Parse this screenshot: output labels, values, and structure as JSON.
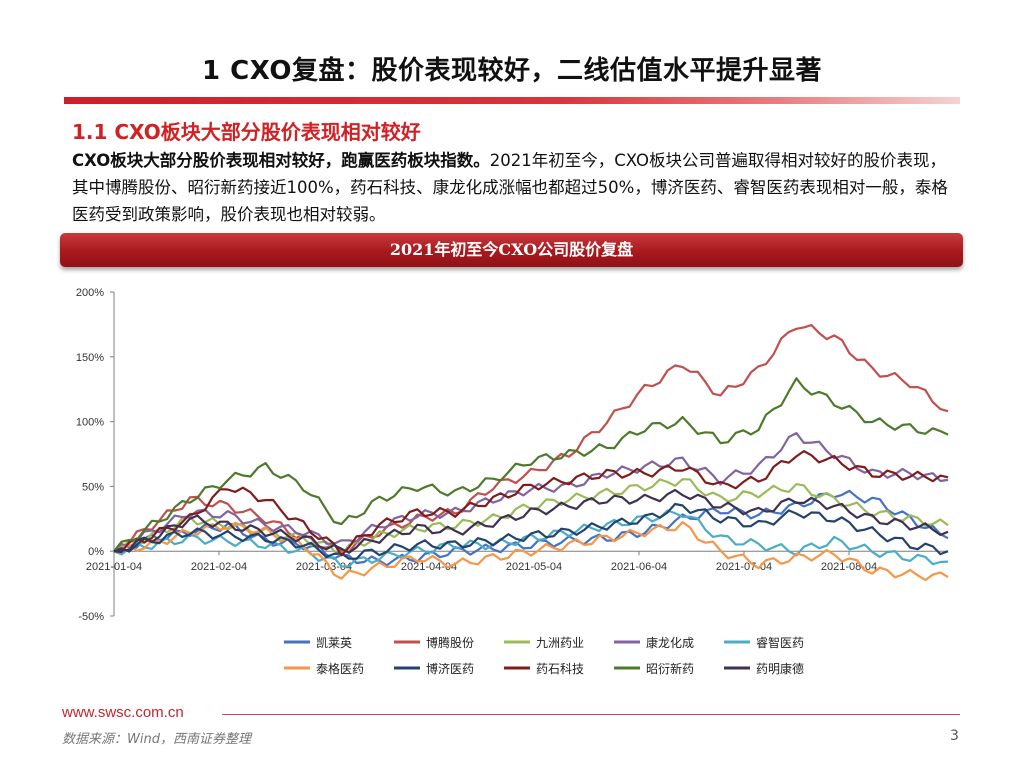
{
  "slide": {
    "title": "1 CXO复盘：股价表现较好，二线估值水平提升显著",
    "subtitle": "1.1 CXO板块大部分股价表现相对较好",
    "body_bold": "CXO板块大部分股价表现相对较好，跑赢医药板块指数。",
    "body_rest": "2021年初至今，CXO板块公司普遍取得相对较好的股价表现，其中博腾股份、昭衍新药接近100%，药石科技、康龙化成涨幅也都超过50%，博济医药、睿智医药表现相对一般，泰格医药受到政策影响，股价表现也相对较弱。",
    "banner": "2021年初至今CXO公司股价复盘",
    "footer_url": "www.swsc.com.cn",
    "footer_source": "数据来源：Wind，西南证券整理",
    "page_number": "3"
  },
  "chart_data": {
    "type": "line",
    "title": "2021年初至今CXO公司股价复盘",
    "xlabel": "",
    "ylabel": "",
    "x_tick_labels": [
      "2021-01-04",
      "2021-02-04",
      "2021-03-04",
      "2021-04-04",
      "2021-05-04",
      "2021-06-04",
      "2021-07-04",
      "2021-08-04"
    ],
    "y_tick_labels": [
      "200%",
      "150%",
      "100%",
      "50%",
      "0%",
      "-50%"
    ],
    "ylim": [
      -50,
      200
    ],
    "n_points": 23,
    "legend_position": "bottom",
    "series": [
      {
        "name": "凯莱英",
        "color": "#4472c4",
        "values": [
          0,
          10,
          15,
          20,
          8,
          5,
          -5,
          -8,
          -5,
          0,
          2,
          5,
          8,
          10,
          15,
          25,
          32,
          28,
          35,
          45,
          40,
          25,
          10
        ]
      },
      {
        "name": "博腾股份",
        "color": "#c0504d",
        "values": [
          0,
          20,
          40,
          35,
          25,
          10,
          0,
          15,
          25,
          30,
          50,
          60,
          75,
          100,
          125,
          145,
          120,
          140,
          175,
          165,
          140,
          130,
          108
        ]
      },
      {
        "name": "九洲药业",
        "color": "#9bbb59",
        "values": [
          0,
          12,
          25,
          20,
          15,
          10,
          0,
          12,
          18,
          20,
          25,
          35,
          40,
          45,
          50,
          55,
          40,
          45,
          50,
          40,
          30,
          25,
          20
        ]
      },
      {
        "name": "康龙化成",
        "color": "#8064a2",
        "values": [
          0,
          15,
          30,
          28,
          20,
          15,
          5,
          20,
          28,
          30,
          40,
          48,
          50,
          60,
          65,
          70,
          55,
          65,
          90,
          75,
          60,
          60,
          55
        ]
      },
      {
        "name": "睿智医药",
        "color": "#4bacc6",
        "values": [
          0,
          5,
          10,
          8,
          5,
          0,
          -10,
          -5,
          0,
          5,
          5,
          10,
          15,
          20,
          25,
          30,
          10,
          5,
          0,
          8,
          0,
          -5,
          -8
        ]
      },
      {
        "name": "泰格医药",
        "color": "#f79646",
        "values": [
          0,
          5,
          15,
          20,
          15,
          5,
          -20,
          -12,
          -5,
          -10,
          -5,
          0,
          5,
          10,
          15,
          20,
          0,
          -10,
          -5,
          -2,
          -15,
          -18,
          -20
        ]
      },
      {
        "name": "博济医药",
        "color": "#23436e",
        "values": [
          0,
          8,
          15,
          12,
          10,
          5,
          -5,
          0,
          5,
          5,
          8,
          12,
          15,
          20,
          25,
          35,
          25,
          20,
          30,
          25,
          15,
          5,
          0
        ]
      },
      {
        "name": "药石科技",
        "color": "#7f1d1d",
        "values": [
          0,
          12,
          25,
          50,
          40,
          20,
          0,
          20,
          30,
          30,
          40,
          50,
          55,
          60,
          60,
          65,
          50,
          55,
          75,
          70,
          60,
          58,
          57
        ]
      },
      {
        "name": "昭衍新药",
        "color": "#4e7a2b",
        "values": [
          0,
          20,
          40,
          55,
          65,
          50,
          20,
          40,
          50,
          45,
          55,
          70,
          75,
          80,
          95,
          100,
          85,
          95,
          130,
          115,
          100,
          95,
          90
        ]
      },
      {
        "name": "药明康德",
        "color": "#3f3151",
        "values": [
          0,
          10,
          25,
          20,
          15,
          10,
          0,
          10,
          18,
          15,
          22,
          30,
          35,
          40,
          40,
          45,
          35,
          30,
          40,
          35,
          25,
          20,
          15
        ]
      }
    ]
  }
}
